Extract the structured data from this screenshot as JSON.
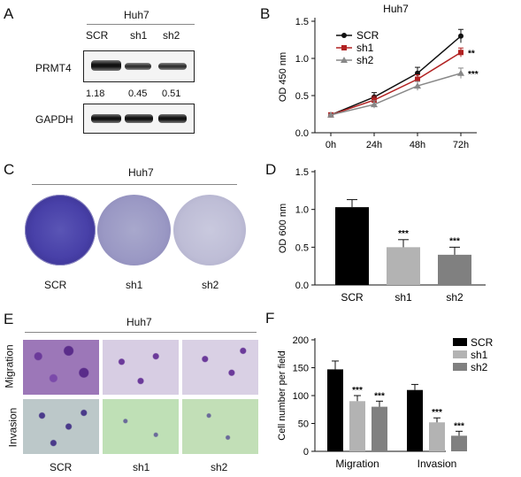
{
  "panel_a": {
    "letter": "A",
    "cell_line": "Huh7",
    "lanes": [
      "SCR",
      "sh1",
      "sh2"
    ],
    "protein1": "PRMT4",
    "protein2": "GAPDH",
    "quant": [
      "1.18",
      "0.45",
      "0.51"
    ]
  },
  "panel_c": {
    "letter": "C",
    "cell_line": "Huh7",
    "labels": [
      "SCR",
      "sh1",
      "sh2"
    ]
  },
  "panel_e": {
    "letter": "E",
    "cell_line": "Huh7",
    "row_labels": [
      "Migration",
      "Invasion"
    ],
    "col_labels": [
      "SCR",
      "sh1",
      "sh2"
    ]
  },
  "chart_data": [
    {
      "panel": "B",
      "type": "line",
      "title": "Huh7",
      "ylabel": "OD 450 nm",
      "xlabel": "",
      "x": [
        "0h",
        "24h",
        "48h",
        "72h"
      ],
      "ylim": [
        0.0,
        1.5
      ],
      "yticks": [
        "0.0",
        "0.5",
        "1.0",
        "1.5"
      ],
      "series": [
        {
          "name": "SCR",
          "values": [
            0.24,
            0.48,
            0.8,
            1.3
          ],
          "err": [
            0.01,
            0.06,
            0.08,
            0.09
          ],
          "color": "#111111",
          "marker": "circle",
          "sig": ""
        },
        {
          "name": "sh1",
          "values": [
            0.24,
            0.44,
            0.72,
            1.08
          ],
          "err": [
            0.01,
            0.05,
            0.06,
            0.06
          ],
          "color": "#b22222",
          "marker": "square",
          "sig": "**"
        },
        {
          "name": "sh2",
          "values": [
            0.24,
            0.38,
            0.63,
            0.8
          ],
          "err": [
            0.01,
            0.05,
            0.06,
            0.07
          ],
          "color": "#888888",
          "marker": "triangle",
          "sig": "***"
        }
      ],
      "legend": "top-left"
    },
    {
      "panel": "D",
      "type": "bar",
      "ylabel": "OD 600 nm",
      "categories": [
        "SCR",
        "sh1",
        "sh2"
      ],
      "values": [
        1.03,
        0.5,
        0.4
      ],
      "err": [
        0.1,
        0.1,
        0.1
      ],
      "colors": [
        "#000000",
        "#b3b3b3",
        "#808080"
      ],
      "sig": [
        "",
        "***",
        "***"
      ],
      "ylim": [
        0.0,
        1.5
      ],
      "yticks": [
        "0.0",
        "0.5",
        "1.0",
        "1.5"
      ]
    },
    {
      "panel": "F",
      "type": "bar",
      "ylabel": "Cell number per field",
      "categories": [
        "Migration",
        "Invasion"
      ],
      "series": [
        {
          "name": "SCR",
          "values": [
            147,
            110
          ],
          "err": [
            15,
            10
          ],
          "color": "#000000"
        },
        {
          "name": "sh1",
          "values": [
            90,
            52
          ],
          "err": [
            10,
            8
          ],
          "color": "#b3b3b3"
        },
        {
          "name": "sh2",
          "values": [
            80,
            28
          ],
          "err": [
            10,
            8
          ],
          "color": "#808080"
        }
      ],
      "sig": [
        [
          "",
          "***",
          "***"
        ],
        [
          "",
          "***",
          "***"
        ]
      ],
      "ylim": [
        0,
        200
      ],
      "yticks": [
        "0",
        "50",
        "100",
        "150",
        "200"
      ],
      "legend": "top-right"
    }
  ]
}
